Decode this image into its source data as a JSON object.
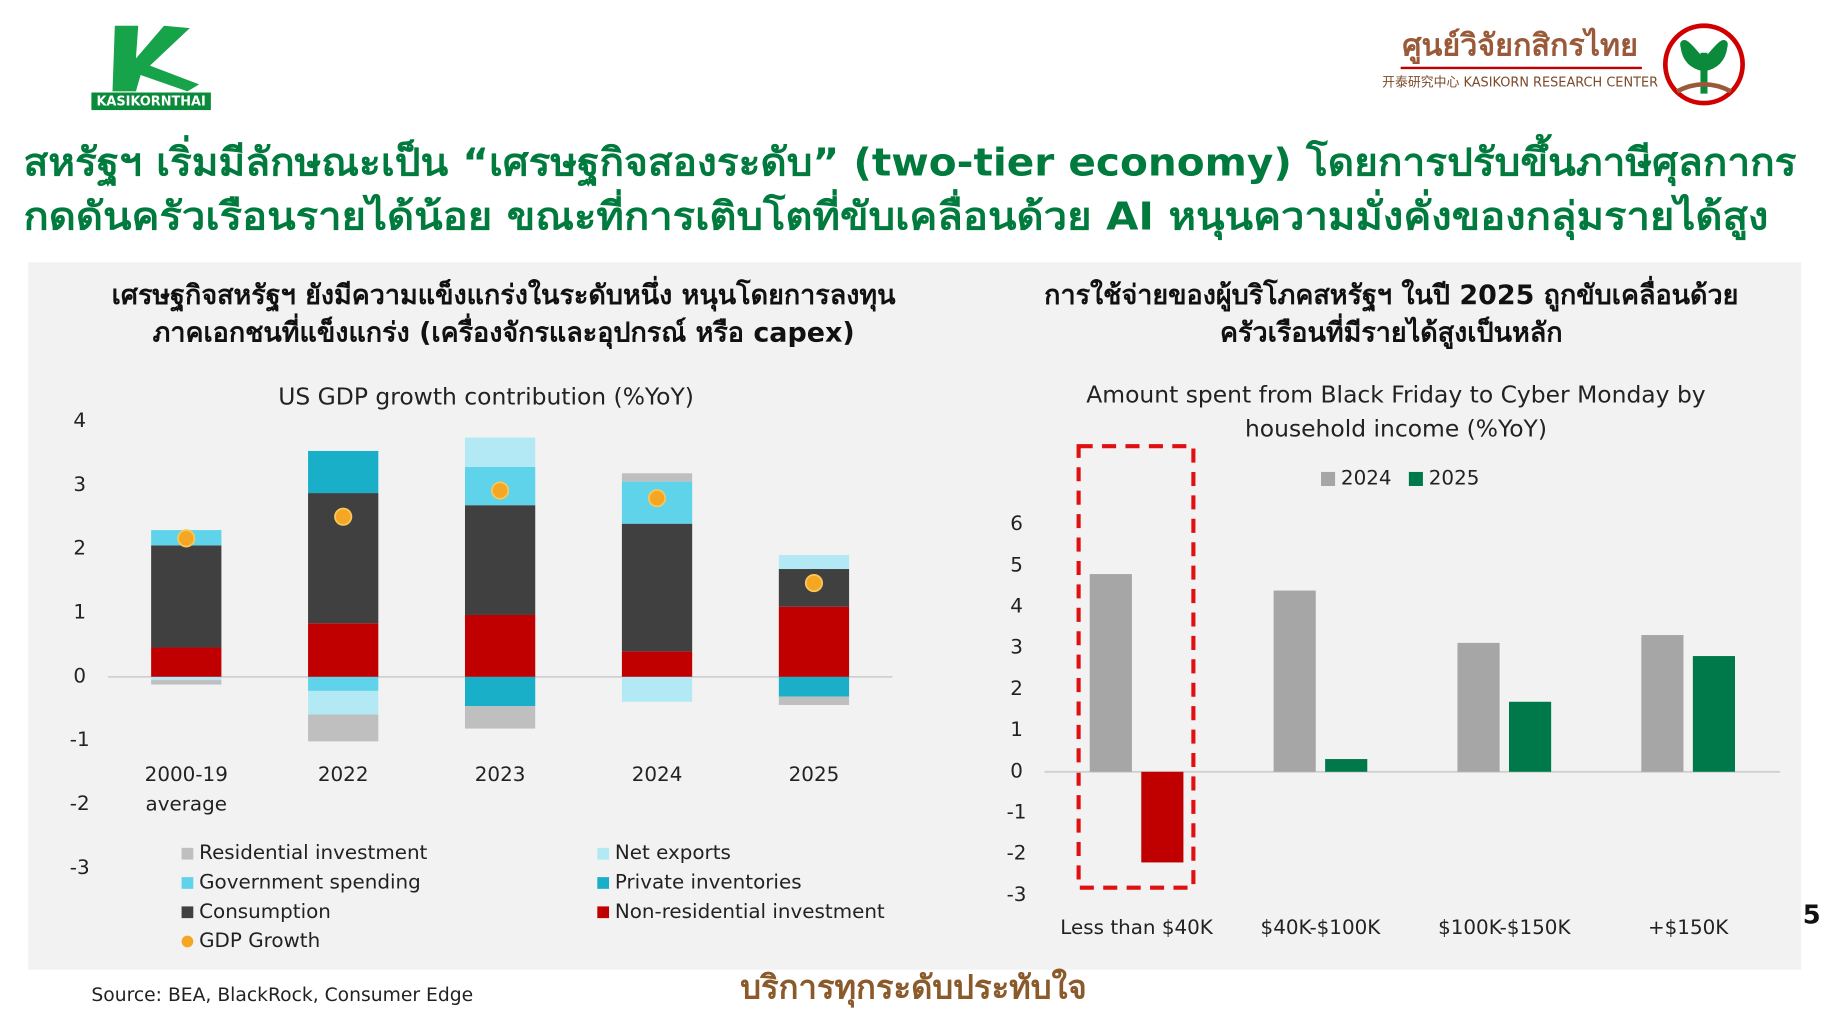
{
  "header": {
    "brand": "KASIKORNTHAI",
    "research_center_thai": "ศูนย์วิจัยกสิกรไทย",
    "research_center_en": "开泰研究中心 KASIKORN RESEARCH CENTER",
    "title_lines": [
      "สหรัฐฯ เริ่มมีลักษณะเป็น “เศรษฐกิจสองระดับ” (two-tier economy) โดยการปรับขึ้นภาษีศุลกากร",
      "กดดันครัวเรือนรายได้น้อย ขณะที่การเติบโตที่ขับเคลื่อนด้วย AI หนุนความมั่งคั่งของกลุ่มรายได้สูง"
    ]
  },
  "panels": [
    {
      "heading_lines": [
        "เศรษฐกิจสหรัฐฯ ยังมีความแข็งแกร่งในระดับหนึ่ง หนุนโดยการลงทุน",
        "ภาคเอกชนที่แข็งแกร่ง (เครื่องจักรและอุปกรณ์ หรือ capex)"
      ]
    },
    {
      "heading_lines": [
        "การใช้จ่ายของผู้บริโภคสหรัฐฯ ในปี 2025 ถูกขับเคลื่อนด้วย",
        "ครัวเรือนที่มีรายได้สูงเป็นหลัก"
      ]
    }
  ],
  "chart_data": [
    {
      "type": "stacked_bar",
      "title": "US GDP growth contribution (%YoY)",
      "categories": [
        "2000-19 average",
        "2022",
        "2023",
        "2024",
        "2025"
      ],
      "ylim": [
        -3,
        4
      ],
      "yticks": [
        4,
        3,
        2,
        1,
        0,
        -1,
        -2,
        -3
      ],
      "series": [
        {
          "name": "Non-residential investment",
          "color": "#c00000",
          "values": [
            0.46,
            0.84,
            0.97,
            0.4,
            1.1
          ]
        },
        {
          "name": "Consumption",
          "color": "#404040",
          "values": [
            1.6,
            2.04,
            1.72,
            2.0,
            0.59
          ]
        },
        {
          "name": "Private inventories",
          "color": "#1aafc9",
          "values": [
            0,
            0.66,
            -0.46,
            0,
            -0.31
          ]
        },
        {
          "name": "Government spending",
          "color": "#5fd3ea",
          "values": [
            0.24,
            -0.22,
            0.6,
            0.66,
            0
          ]
        },
        {
          "name": "Net exports",
          "color": "#b3e9f5",
          "values": [
            -0.05,
            -0.37,
            0.46,
            -0.39,
            0.22
          ]
        },
        {
          "name": "Residential investment",
          "color": "#bfbfbf",
          "values": [
            -0.07,
            -0.42,
            -0.35,
            0.13,
            -0.13
          ]
        }
      ],
      "markers": {
        "name": "GDP Growth",
        "color": "#f5a623",
        "values": [
          2.17,
          2.51,
          2.92,
          2.8,
          1.47
        ]
      }
    },
    {
      "type": "grouped_bar",
      "title": [
        "Amount spent from Black Friday to Cyber Monday by",
        "household income (%YoY)"
      ],
      "categories": [
        "Less than $40K",
        "$40K-$100K",
        "$100K-$150K",
        "+$150K"
      ],
      "ylim": [
        -3,
        6
      ],
      "yticks": [
        6,
        5,
        4,
        3,
        2,
        1,
        0,
        -1,
        -2,
        -3
      ],
      "series": [
        {
          "name": "2024",
          "color": "#a6a6a6",
          "values": [
            4.8,
            4.4,
            3.13,
            3.32
          ]
        },
        {
          "name": "2025",
          "color": "#00794a",
          "values": [
            -2.2,
            0.31,
            1.7,
            2.81
          ],
          "colors": [
            "#c00000",
            "#00794a",
            "#00794a",
            "#00794a"
          ]
        }
      ]
    }
  ],
  "footer": {
    "source": "Source: BEA, BlackRock, Consumer Edge",
    "slogan": "บริการทุกระดับประทับใจ",
    "page": "5"
  }
}
